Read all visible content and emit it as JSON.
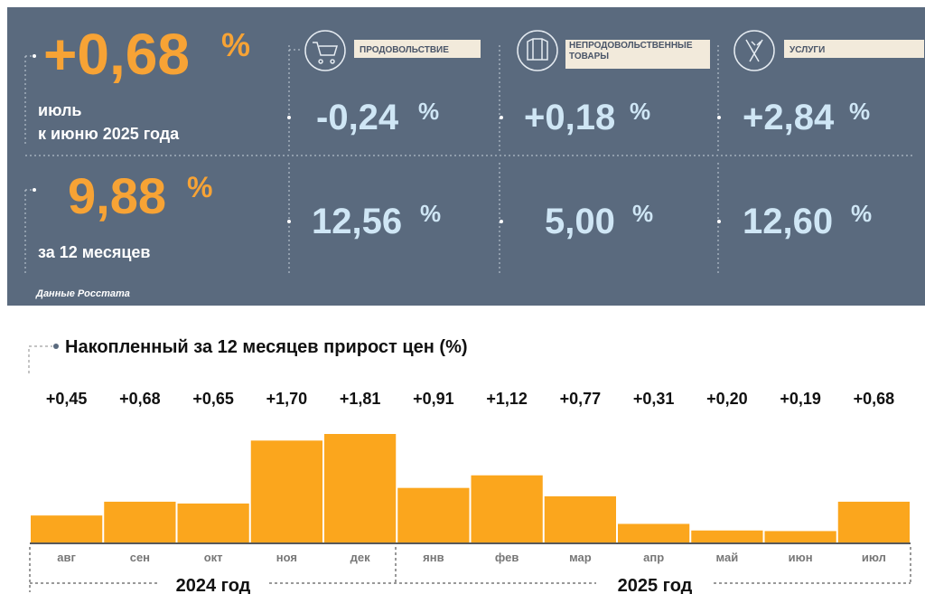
{
  "panel": {
    "unit": "%",
    "month_change": "+0,68",
    "month_caption": [
      "июль",
      "к июню 2025 года"
    ],
    "annual_change": "9,88",
    "annual_caption": "за 12 месяцев",
    "groups": [
      {
        "label": "ПРОДОВОЛЬСТВИЕ",
        "month": "-0,24",
        "annual": "12,56"
      },
      {
        "label": "НЕПРОДОВОЛЬСТВЕННЫЕ ТОВАРЫ",
        "month": "+0,18",
        "annual": "5,00"
      },
      {
        "label": "УСЛУГИ",
        "month": "+2,84",
        "annual": "12,60"
      }
    ],
    "source": "Данные Росстата"
  },
  "chart_data": {
    "type": "bar",
    "title": "Накопленный за 12 месяцев прирост цен (%)",
    "categories": [
      "авг",
      "сен",
      "окт",
      "ноя",
      "дек",
      "янв",
      "фев",
      "мар",
      "апр",
      "май",
      "июн",
      "июл"
    ],
    "values": [
      0.45,
      0.68,
      0.65,
      1.7,
      1.81,
      0.91,
      1.12,
      0.77,
      0.31,
      0.2,
      0.19,
      0.68
    ],
    "value_labels": [
      "+0,45",
      "+0,68",
      "+0,65",
      "+1,70",
      "+1,81",
      "+0,91",
      "+1,12",
      "+0,77",
      "+0,31",
      "+0,20",
      "+0,19",
      "+0,68"
    ],
    "color": "#fba61d",
    "year_labels": [
      "2024 год",
      "2025 год"
    ]
  }
}
